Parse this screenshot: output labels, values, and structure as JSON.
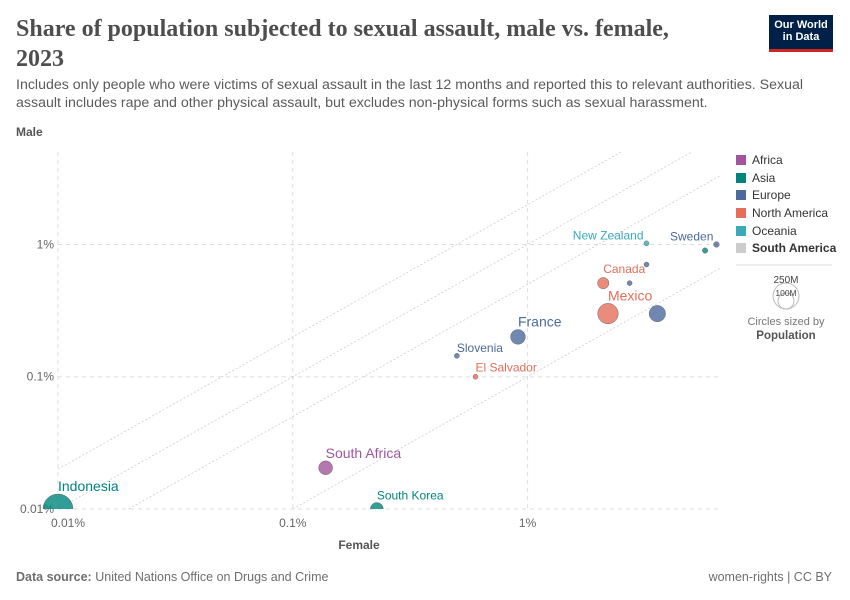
{
  "title": "Share of population subjected to sexual assault, male vs. female, 2023",
  "subtitle": "Includes only people who were victims of sexual assault in the last 12 months and reported this to relevant authorities. Sexual assault includes rape and other physical assault, but excludes non-physical forms such as sexual harassment.",
  "logo": {
    "line1": "Our World",
    "line2": "in Data"
  },
  "footer": {
    "source_label": "Data source:",
    "source": "United Nations Office on Drugs and Crime",
    "right": "women-rights | CC BY"
  },
  "legend": {
    "regions": [
      {
        "name": "Africa",
        "color": "#a2559c"
      },
      {
        "name": "Asia",
        "color": "#00847e"
      },
      {
        "name": "Europe",
        "color": "#4c6a9c"
      },
      {
        "name": "North America",
        "color": "#e56e5a"
      },
      {
        "name": "Oceania",
        "color": "#38aaba"
      },
      {
        "name": "South America",
        "color": "#cccccc"
      }
    ],
    "size_large": "250M",
    "size_small": "100M",
    "size_caption": "Circles sized by",
    "size_variable": "Population"
  },
  "chart_data": {
    "type": "scatter",
    "xlabel": "Female",
    "ylabel": "Male",
    "x_scale": "log",
    "y_scale": "log",
    "xlim": [
      0.01,
      6.6
    ],
    "ylim": [
      0.01,
      5.0
    ],
    "x_ticks": [
      "0.01%",
      "0.1%",
      "1%"
    ],
    "y_ticks": [
      "0.01%",
      "0.1%",
      "1%"
    ],
    "x_tick_values": [
      0.01,
      0.1,
      1
    ],
    "y_tick_values": [
      0.01,
      0.1,
      1
    ],
    "ratio_lines": [
      2,
      1,
      0.5,
      0.1
    ],
    "grid": true,
    "legend_placement": "right",
    "points": [
      {
        "label": "Indonesia",
        "region": "Asia",
        "x": 0.01,
        "y": 0.01,
        "population_m": 280
      },
      {
        "label": "South Africa",
        "region": "Africa",
        "x": 0.138,
        "y": 0.0205,
        "population_m": 60
      },
      {
        "label": "South Korea",
        "region": "Asia",
        "x": 0.228,
        "y": 0.01,
        "population_m": 52
      },
      {
        "label": "El Salvador",
        "region": "North America",
        "x": 0.6,
        "y": 0.1,
        "population_m": 6
      },
      {
        "label": "Slovenia",
        "region": "Europe",
        "x": 0.5,
        "y": 0.144,
        "population_m": 2
      },
      {
        "label": "France",
        "region": "Europe",
        "x": 0.91,
        "y": 0.2,
        "population_m": 68
      },
      {
        "label": "Canada",
        "region": "North America",
        "x": 2.1,
        "y": 0.51,
        "population_m": 40
      },
      {
        "label": "Mexico",
        "region": "North America",
        "x": 2.2,
        "y": 0.3,
        "population_m": 130
      },
      {
        "label": "",
        "region": "Europe",
        "x": 3.57,
        "y": 0.3,
        "population_m": 84
      },
      {
        "label": "",
        "region": "Europe",
        "x": 2.72,
        "y": 0.51,
        "population_m": 5
      },
      {
        "label": "",
        "region": "Europe",
        "x": 3.21,
        "y": 0.705,
        "population_m": 2
      },
      {
        "label": "New Zealand",
        "region": "Oceania",
        "x": 3.21,
        "y": 1.02,
        "population_m": 5
      },
      {
        "label": "",
        "region": "Asia",
        "x": 5.7,
        "y": 0.9,
        "population_m": 9
      },
      {
        "label": "Sweden",
        "region": "Europe",
        "x": 6.37,
        "y": 1.0,
        "population_m": 10
      }
    ]
  }
}
